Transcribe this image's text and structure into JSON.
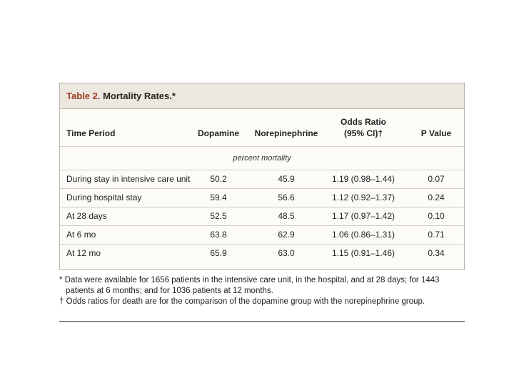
{
  "table": {
    "label": "Table 2.",
    "title": "Mortality Rates.*",
    "columns": [
      "Time Period",
      "Dopamine",
      "Norepinephrine",
      [
        "Odds Ratio",
        "(95% CI)†"
      ],
      "P Value"
    ],
    "unit_note": "percent mortality",
    "rows": [
      [
        "During stay in intensive care unit",
        "50.2",
        "45.9",
        "1.19 (0.98–1.44)",
        "0.07"
      ],
      [
        "During hospital stay",
        "59.4",
        "56.6",
        "1.12 (0.92–1.37)",
        "0.24"
      ],
      [
        "At 28 days",
        "52.5",
        "48.5",
        "1.17 (0.97–1.42)",
        "0.10"
      ],
      [
        "At 6 mo",
        "63.8",
        "62.9",
        "1.06 (0.86–1.31)",
        "0.71"
      ],
      [
        "At 12 mo",
        "65.9",
        "63.0",
        "1.15 (0.91–1.46)",
        "0.34"
      ]
    ],
    "footnotes": [
      "* Data were available for 1656 patients in the intensive care unit, in the hospital, and at 28 days; for 1443 patients at 6 months; and for 1036 patients at 12 months.",
      "† Odds ratios for death are for the comparison of the dopamine group with the norepinephrine group."
    ]
  }
}
